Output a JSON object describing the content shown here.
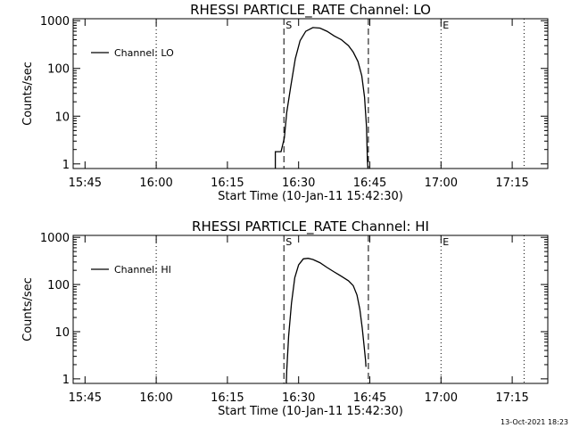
{
  "figure": {
    "timestamp": "13-Oct-2021 18:23"
  },
  "chart_data": [
    {
      "type": "line",
      "title": "RHESSI PARTICLE_RATE Channel: LO",
      "xlabel": "Start Time (10-Jan-11 15:42:30)",
      "ylabel": "Counts/sec",
      "yscale": "log",
      "xlim_minutes": [
        0,
        100
      ],
      "ylim": [
        0.8,
        1100
      ],
      "x_ticks": [
        {
          "t": 2.5,
          "label": "15:45"
        },
        {
          "t": 17.5,
          "label": "16:00"
        },
        {
          "t": 32.5,
          "label": "16:15"
        },
        {
          "t": 47.5,
          "label": "16:30"
        },
        {
          "t": 62.5,
          "label": "16:45"
        },
        {
          "t": 77.5,
          "label": "17:00"
        },
        {
          "t": 92.5,
          "label": "17:15"
        }
      ],
      "y_ticks": [
        {
          "v": 1,
          "label": "1"
        },
        {
          "v": 10,
          "label": "10"
        },
        {
          "v": 100,
          "label": "100"
        },
        {
          "v": 1000,
          "label": "1000"
        }
      ],
      "legend": {
        "label": "Channel: LO",
        "position": "top-left"
      },
      "markers": [
        {
          "t": 17.5,
          "label": "",
          "style": "dotted"
        },
        {
          "t": 44.4,
          "label": "S",
          "style": "dashed"
        },
        {
          "t": 62.2,
          "label": "",
          "style": "dashed"
        },
        {
          "t": 77.5,
          "label": "E",
          "style": "dotted"
        },
        {
          "t": 95.0,
          "label": "",
          "style": "dotted"
        }
      ],
      "series": [
        {
          "points": [
            [
              42.6,
              0.8
            ],
            [
              42.6,
              1.8
            ],
            [
              43.8,
              1.8
            ],
            [
              44.5,
              3.5
            ],
            [
              45.0,
              12
            ],
            [
              45.8,
              40
            ],
            [
              46.8,
              160
            ],
            [
              47.8,
              380
            ],
            [
              49.0,
              600
            ],
            [
              50.5,
              720
            ],
            [
              52.0,
              700
            ],
            [
              53.5,
              600
            ],
            [
              55.0,
              480
            ],
            [
              56.5,
              400
            ],
            [
              58.0,
              300
            ],
            [
              59.0,
              220
            ],
            [
              60.0,
              140
            ],
            [
              60.8,
              70
            ],
            [
              61.4,
              25
            ],
            [
              61.8,
              6
            ],
            [
              62.0,
              1.2
            ],
            [
              62.1,
              0.8
            ]
          ]
        }
      ]
    },
    {
      "type": "line",
      "title": "RHESSI PARTICLE_RATE Channel: HI",
      "xlabel": "Start Time (10-Jan-11 15:42:30)",
      "ylabel": "Counts/sec",
      "yscale": "log",
      "xlim_minutes": [
        0,
        100
      ],
      "ylim": [
        0.8,
        1100
      ],
      "x_ticks": [
        {
          "t": 2.5,
          "label": "15:45"
        },
        {
          "t": 17.5,
          "label": "16:00"
        },
        {
          "t": 32.5,
          "label": "16:15"
        },
        {
          "t": 47.5,
          "label": "16:30"
        },
        {
          "t": 62.5,
          "label": "16:45"
        },
        {
          "t": 77.5,
          "label": "17:00"
        },
        {
          "t": 92.5,
          "label": "17:15"
        }
      ],
      "y_ticks": [
        {
          "v": 1,
          "label": "1"
        },
        {
          "v": 10,
          "label": "10"
        },
        {
          "v": 100,
          "label": "100"
        },
        {
          "v": 1000,
          "label": "1000"
        }
      ],
      "legend": {
        "label": "Channel: HI",
        "position": "top-left"
      },
      "markers": [
        {
          "t": 17.5,
          "label": "",
          "style": "dotted"
        },
        {
          "t": 44.4,
          "label": "S",
          "style": "dashed"
        },
        {
          "t": 62.2,
          "label": "",
          "style": "dashed"
        },
        {
          "t": 77.5,
          "label": "E",
          "style": "dotted"
        },
        {
          "t": 95.0,
          "label": "",
          "style": "dotted"
        }
      ],
      "series": [
        {
          "points": [
            [
              44.9,
              0.8
            ],
            [
              45.0,
              1.5
            ],
            [
              45.4,
              8
            ],
            [
              46.0,
              40
            ],
            [
              46.7,
              140
            ],
            [
              47.5,
              260
            ],
            [
              48.5,
              350
            ],
            [
              49.5,
              360
            ],
            [
              50.5,
              340
            ],
            [
              52.0,
              290
            ],
            [
              53.5,
              230
            ],
            [
              55.0,
              185
            ],
            [
              56.5,
              150
            ],
            [
              58.0,
              120
            ],
            [
              59.0,
              95
            ],
            [
              59.8,
              60
            ],
            [
              60.4,
              30
            ],
            [
              60.9,
              12
            ],
            [
              61.3,
              5
            ],
            [
              61.6,
              2.5
            ],
            [
              61.7,
              1.8
            ]
          ]
        }
      ]
    }
  ]
}
